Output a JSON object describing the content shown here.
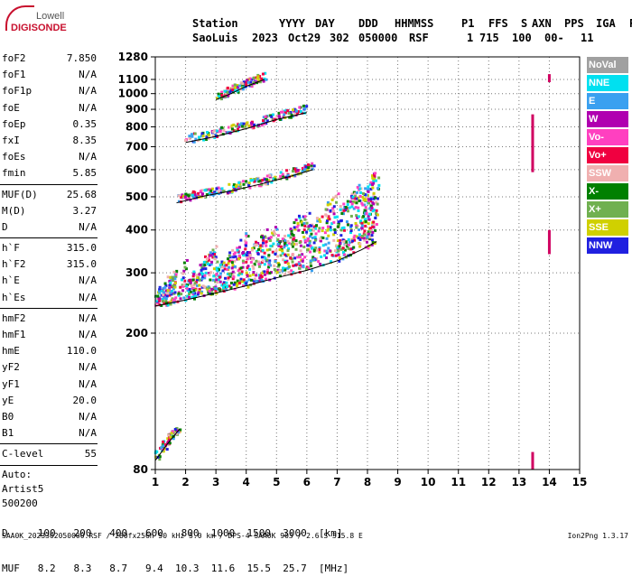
{
  "logo": {
    "top": "Lowell",
    "bottom": "DIGISONDE"
  },
  "header": {
    "labels": [
      "Station",
      "YYYY",
      "DAY",
      "DDD",
      "HHMMSS",
      "P1",
      "FFS",
      "S",
      "AXN",
      "PPS",
      "IGA",
      "PS"
    ],
    "values": [
      "SaoLuis",
      "2023",
      "Oct29",
      "302",
      "050000",
      "RSF",
      "1",
      "715",
      "100",
      "00-",
      "11"
    ]
  },
  "params_group1": [
    {
      "k": "foF2",
      "v": "7.850"
    },
    {
      "k": "foF1",
      "v": "N/A"
    },
    {
      "k": "foF1p",
      "v": "N/A"
    },
    {
      "k": "foE",
      "v": "N/A"
    },
    {
      "k": "foEp",
      "v": "0.35"
    },
    {
      "k": "fxI",
      "v": "8.35"
    },
    {
      "k": "foEs",
      "v": "N/A"
    },
    {
      "k": "fmin",
      "v": "5.85"
    }
  ],
  "params_group2": [
    {
      "k": "MUF(D)",
      "v": "25.68"
    },
    {
      "k": "M(D)",
      "v": "3.27"
    },
    {
      "k": "D",
      "v": "N/A"
    }
  ],
  "params_group3": [
    {
      "k": "h`F",
      "v": "315.0"
    },
    {
      "k": "h`F2",
      "v": "315.0"
    },
    {
      "k": "h`E",
      "v": "N/A"
    },
    {
      "k": "h`Es",
      "v": "N/A"
    }
  ],
  "params_group4": [
    {
      "k": "hmF2",
      "v": "N/A"
    },
    {
      "k": "hmF1",
      "v": "N/A"
    },
    {
      "k": "hmE",
      "v": "110.0"
    },
    {
      "k": "yF2",
      "v": "N/A"
    },
    {
      "k": "yF1",
      "v": "N/A"
    },
    {
      "k": "yE",
      "v": "20.0"
    },
    {
      "k": "B0",
      "v": "N/A"
    },
    {
      "k": "B1",
      "v": "N/A"
    }
  ],
  "params_group5": [
    {
      "k": "C-level",
      "v": "55"
    }
  ],
  "auto": [
    "Auto:",
    "Artist5",
    "500200"
  ],
  "legend": [
    {
      "label": "NoVal",
      "color": "#a0a0a0"
    },
    {
      "label": "NNE",
      "color": "#00e0f0"
    },
    {
      "label": "E",
      "color": "#3aa0f0"
    },
    {
      "label": "W",
      "color": "#b000b0"
    },
    {
      "label": "Vo-",
      "color": "#ff40c0"
    },
    {
      "label": "Vo+",
      "color": "#f00040"
    },
    {
      "label": "SSW",
      "color": "#f0b0b0"
    },
    {
      "label": "X-",
      "color": "#008000"
    },
    {
      "label": "X+",
      "color": "#70b050"
    },
    {
      "label": "SSE",
      "color": "#d0d000"
    },
    {
      "label": "NNW",
      "color": "#2020e0"
    }
  ],
  "bottom_table": {
    "row1": "D     100   200   400   600   800  1000  1500  3000  [km]",
    "row2": "MUF   8.2   8.3   8.7   9.4  10.3  11.6  15.5  25.7  [MHz]"
  },
  "footer": {
    "left": "SAA0K_2023302050000.RSF / 280fx256h 50 kHz 5.0 km / DPS-4 SAA0K 903 / 2.6 S 315.8 E",
    "right": "Ion2Png 1.3.17"
  },
  "chart_data": {
    "type": "scatter",
    "xlim": [
      1,
      15
    ],
    "ylim": [
      80,
      1280
    ],
    "x_ticks": [
      1,
      2,
      3,
      4,
      5,
      6,
      7,
      8,
      9,
      10,
      11,
      12,
      13,
      14,
      15
    ],
    "y_ticks": [
      80,
      200,
      300,
      400,
      500,
      600,
      700,
      800,
      900,
      1000,
      1100,
      1280
    ],
    "x_unit": "MHz",
    "y_unit": "km",
    "grid": true,
    "traces": [
      {
        "name": "1st hop F trace",
        "points": [
          [
            1.0,
            240
          ],
          [
            2.0,
            250
          ],
          [
            3.0,
            262
          ],
          [
            4.0,
            275
          ],
          [
            5.0,
            290
          ],
          [
            6.0,
            305
          ],
          [
            7.0,
            325
          ],
          [
            7.8,
            350
          ],
          [
            8.3,
            370
          ]
        ]
      },
      {
        "name": "2nd hop F trace",
        "points": [
          [
            1.7,
            480
          ],
          [
            2.5,
            500
          ],
          [
            3.5,
            520
          ],
          [
            4.5,
            545
          ],
          [
            5.5,
            575
          ],
          [
            6.2,
            600
          ]
        ]
      },
      {
        "name": "3rd hop F trace",
        "points": [
          [
            2.0,
            720
          ],
          [
            3.0,
            750
          ],
          [
            4.0,
            790
          ],
          [
            5.0,
            840
          ],
          [
            6.0,
            880
          ]
        ]
      },
      {
        "name": "4th hop F trace",
        "points": [
          [
            3.0,
            960
          ],
          [
            3.5,
            1000
          ],
          [
            4.0,
            1050
          ],
          [
            4.6,
            1100
          ]
        ]
      },
      {
        "name": "low E trace",
        "points": [
          [
            1.0,
            85
          ],
          [
            1.4,
            95
          ],
          [
            1.8,
            105
          ]
        ]
      }
    ],
    "interference": [
      {
        "x": 13.45,
        "ymin": 590,
        "ymax": 870,
        "label": "vertical band"
      },
      {
        "x": 14.0,
        "ymin": 1080,
        "ymax": 1140,
        "label": "vertical band top"
      },
      {
        "x": 14.0,
        "ymin": 340,
        "ymax": 400,
        "label": "vertical band mid"
      },
      {
        "x": 13.45,
        "ymin": 80,
        "ymax": 90,
        "label": "vertical band low"
      }
    ]
  }
}
